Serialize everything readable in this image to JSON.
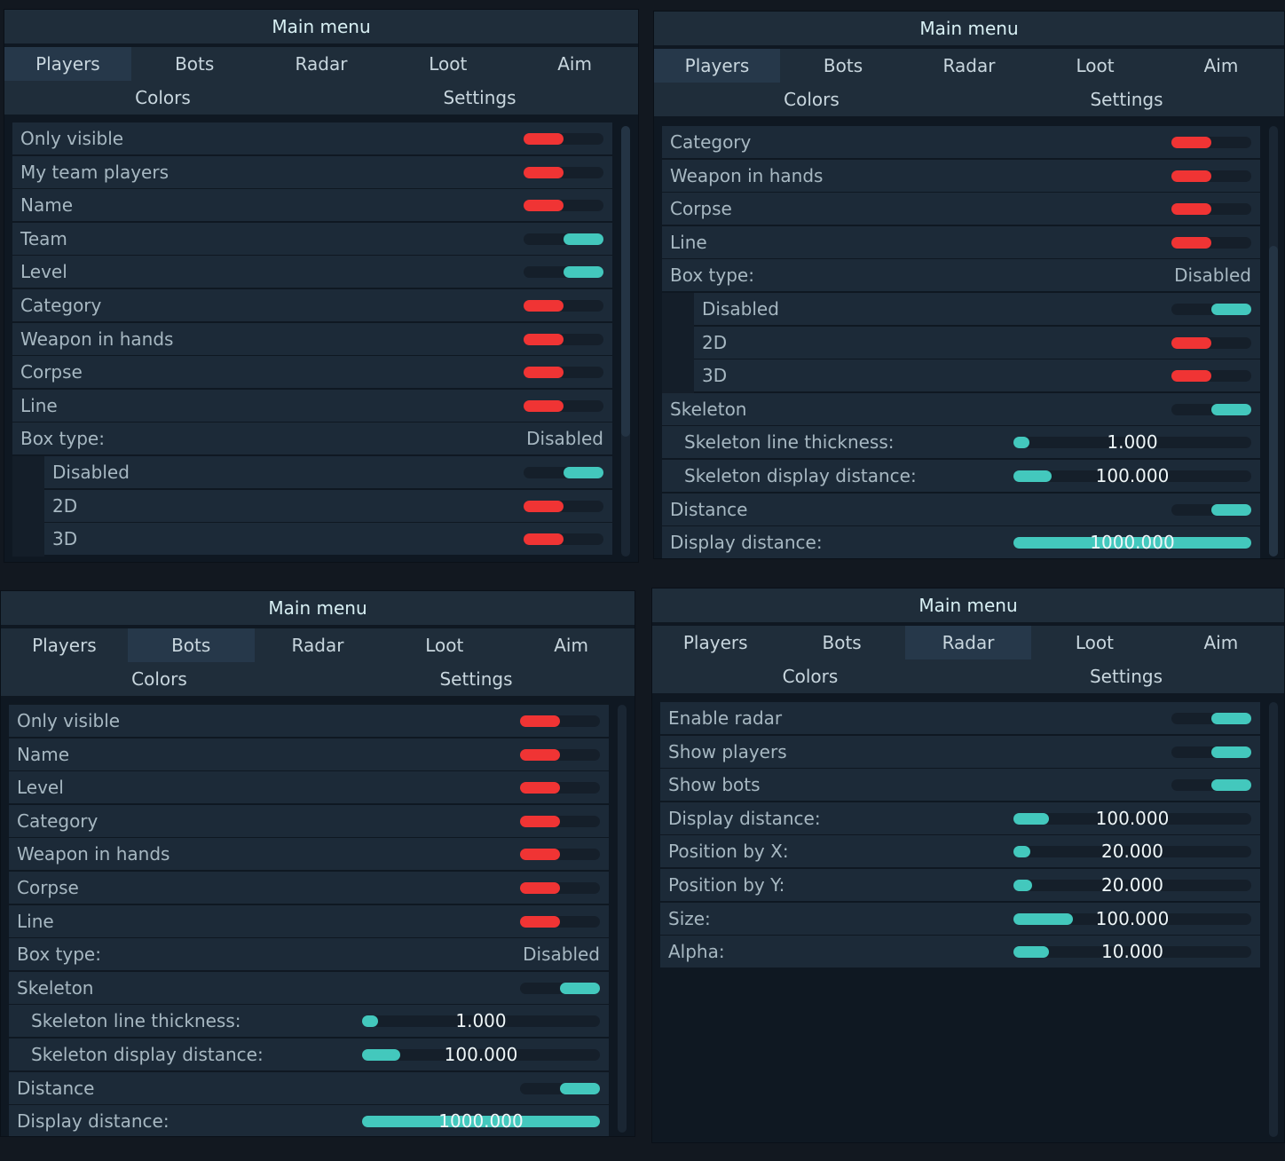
{
  "colors": {
    "on": "#43c8bd",
    "off": "#f03434",
    "row": "#1c2a38",
    "header": "#1f2d3a"
  },
  "panels": [
    {
      "title": "Main menu",
      "tabs": [
        "Players",
        "Bots",
        "Radar",
        "Loot",
        "Aim"
      ],
      "active_tab": 0,
      "subtabs": [
        "Colors",
        "Settings"
      ],
      "rows": [
        {
          "label": "Only visible",
          "type": "toggle",
          "on": false
        },
        {
          "label": "My team players",
          "type": "toggle",
          "on": false
        },
        {
          "label": "Name",
          "type": "toggle",
          "on": false
        },
        {
          "label": "Team",
          "type": "toggle",
          "on": true
        },
        {
          "label": "Level",
          "type": "toggle",
          "on": true
        },
        {
          "label": "Category",
          "type": "toggle",
          "on": false
        },
        {
          "label": "Weapon in hands",
          "type": "toggle",
          "on": false
        },
        {
          "label": "Corpse",
          "type": "toggle",
          "on": false
        },
        {
          "label": "Line",
          "type": "toggle",
          "on": false
        },
        {
          "label": "Box type:",
          "type": "value",
          "value": "Disabled"
        },
        {
          "label": "Disabled",
          "type": "toggle",
          "on": true,
          "indent": true
        },
        {
          "label": "2D",
          "type": "toggle",
          "on": false,
          "indent": true
        },
        {
          "label": "3D",
          "type": "toggle",
          "on": false,
          "indent": true
        }
      ]
    },
    {
      "title": "Main menu",
      "tabs": [
        "Players",
        "Bots",
        "Radar",
        "Loot",
        "Aim"
      ],
      "active_tab": 0,
      "subtabs": [
        "Colors",
        "Settings"
      ],
      "rows": [
        {
          "label": "Category",
          "type": "toggle",
          "on": false
        },
        {
          "label": "Weapon in hands",
          "type": "toggle",
          "on": false
        },
        {
          "label": "Corpse",
          "type": "toggle",
          "on": false
        },
        {
          "label": "Line",
          "type": "toggle",
          "on": false
        },
        {
          "label": "Box type:",
          "type": "value",
          "value": "Disabled"
        },
        {
          "label": "Disabled",
          "type": "toggle",
          "on": true,
          "indent": true
        },
        {
          "label": "2D",
          "type": "toggle",
          "on": false,
          "indent": true
        },
        {
          "label": "3D",
          "type": "toggle",
          "on": false,
          "indent": true
        },
        {
          "label": "Skeleton",
          "type": "toggle",
          "on": true
        },
        {
          "label": "Skeleton line thickness:",
          "type": "slider",
          "value": "1.000",
          "fraction": 0.05,
          "sub": true
        },
        {
          "label": "Skeleton display distance:",
          "type": "slider",
          "value": "100.000",
          "fraction": 0.16,
          "sub": true
        },
        {
          "label": "Distance",
          "type": "toggle",
          "on": true
        },
        {
          "label": "Display distance:",
          "type": "slider",
          "value": "1000.000",
          "fraction": 1.0
        }
      ]
    },
    {
      "title": "Main menu",
      "tabs": [
        "Players",
        "Bots",
        "Radar",
        "Loot",
        "Aim"
      ],
      "active_tab": 1,
      "subtabs": [
        "Colors",
        "Settings"
      ],
      "rows": [
        {
          "label": "Only visible",
          "type": "toggle",
          "on": false
        },
        {
          "label": "Name",
          "type": "toggle",
          "on": false
        },
        {
          "label": "Level",
          "type": "toggle",
          "on": false
        },
        {
          "label": "Category",
          "type": "toggle",
          "on": false
        },
        {
          "label": "Weapon in hands",
          "type": "toggle",
          "on": false
        },
        {
          "label": "Corpse",
          "type": "toggle",
          "on": false
        },
        {
          "label": "Line",
          "type": "toggle",
          "on": false
        },
        {
          "label": "Box type:",
          "type": "value",
          "value": "Disabled"
        },
        {
          "label": "Skeleton",
          "type": "toggle",
          "on": true
        },
        {
          "label": "Skeleton line thickness:",
          "type": "slider",
          "value": "1.000",
          "fraction": 0.05,
          "sub": true
        },
        {
          "label": "Skeleton display distance:",
          "type": "slider",
          "value": "100.000",
          "fraction": 0.16,
          "sub": true
        },
        {
          "label": "Distance",
          "type": "toggle",
          "on": true
        },
        {
          "label": "Display distance:",
          "type": "slider",
          "value": "1000.000",
          "fraction": 1.0
        }
      ]
    },
    {
      "title": "Main menu",
      "tabs": [
        "Players",
        "Bots",
        "Radar",
        "Loot",
        "Aim"
      ],
      "active_tab": 2,
      "subtabs": [
        "Colors",
        "Settings"
      ],
      "rows": [
        {
          "label": "Enable radar",
          "type": "toggle",
          "on": true
        },
        {
          "label": "Show players",
          "type": "toggle",
          "on": true
        },
        {
          "label": "Show bots",
          "type": "toggle",
          "on": true
        },
        {
          "label": "Display distance:",
          "type": "slider",
          "value": "100.000",
          "fraction": 0.15
        },
        {
          "label": "Position by X:",
          "type": "slider",
          "value": "20.000",
          "fraction": 0.07
        },
        {
          "label": "Position by Y:",
          "type": "slider",
          "value": "20.000",
          "fraction": 0.08
        },
        {
          "label": "Size:",
          "type": "slider",
          "value": "100.000",
          "fraction": 0.25
        },
        {
          "label": "Alpha:",
          "type": "slider",
          "value": "10.000",
          "fraction": 0.15
        }
      ]
    }
  ]
}
